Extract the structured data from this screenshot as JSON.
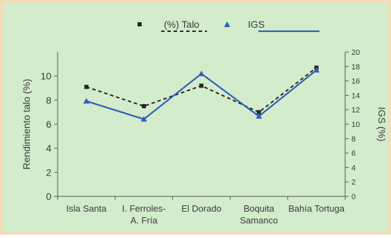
{
  "chart_data": {
    "type": "line",
    "categories": [
      "Isla Santa",
      "I. Ferroles-\nA. Fría",
      "El Dorado",
      "Boquita\nSamanco",
      "Bahía Tortuga"
    ],
    "series": [
      {
        "name": "(%) Talo",
        "axis": "left",
        "style": "dashed",
        "marker": "square",
        "color": "#262626",
        "values": [
          9.1,
          7.5,
          9.2,
          7.0,
          10.7
        ]
      },
      {
        "name": "IGS",
        "axis": "right",
        "style": "solid",
        "marker": "triangle",
        "color": "#2e5fb8",
        "values": [
          13.2,
          10.7,
          17.0,
          11.1,
          17.5
        ]
      }
    ],
    "ylabel": "Rendimiento talo (%)",
    "ylabel_right": "IGS (%)",
    "ylim": [
      0,
      12
    ],
    "y2lim": [
      0,
      20
    ],
    "yticks": [
      0,
      2,
      4,
      6,
      8,
      10
    ],
    "y2ticks": [
      0,
      2,
      4,
      6,
      8,
      10,
      12,
      14,
      16,
      18,
      20
    ],
    "legend_position": "top-center",
    "grid": false,
    "background": "#d3eccc",
    "frame_color": "#f2dcb8"
  }
}
